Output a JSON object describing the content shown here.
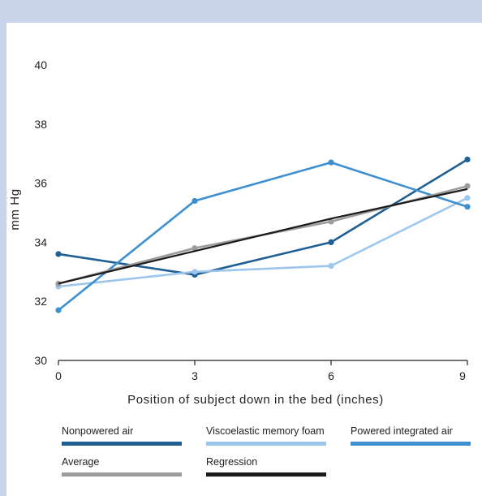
{
  "chart_data": {
    "type": "line",
    "x": [
      0,
      3,
      6,
      9
    ],
    "xlabel": "Position of subject down in the bed (inches)",
    "ylabel": "mm Hg",
    "xlim": [
      0,
      9
    ],
    "ylim": [
      30,
      40
    ],
    "x_ticks": [
      "0",
      "3",
      "6",
      "9"
    ],
    "y_ticks": [
      "30",
      "32",
      "34",
      "36",
      "38",
      "40"
    ],
    "grid": false,
    "legend_position": "bottom",
    "series": [
      {
        "name": "Nonpowered air",
        "color": "#1f5f94",
        "values": [
          33.6,
          32.9,
          34.0,
          36.8
        ]
      },
      {
        "name": "Viscoelastic memory foam",
        "color": "#9dc6ec",
        "values": [
          32.5,
          33.0,
          33.2,
          35.5
        ]
      },
      {
        "name": "Powered integrated air",
        "color": "#3d8fcf",
        "values": [
          31.7,
          35.4,
          36.7,
          35.2
        ]
      },
      {
        "name": "Average",
        "color": "#9c9c9c",
        "values": [
          32.6,
          33.8,
          34.7,
          35.9
        ]
      },
      {
        "name": "Regression",
        "color": "#1a1a1a",
        "values": [
          32.6,
          33.7,
          34.8,
          35.8
        ]
      }
    ]
  }
}
